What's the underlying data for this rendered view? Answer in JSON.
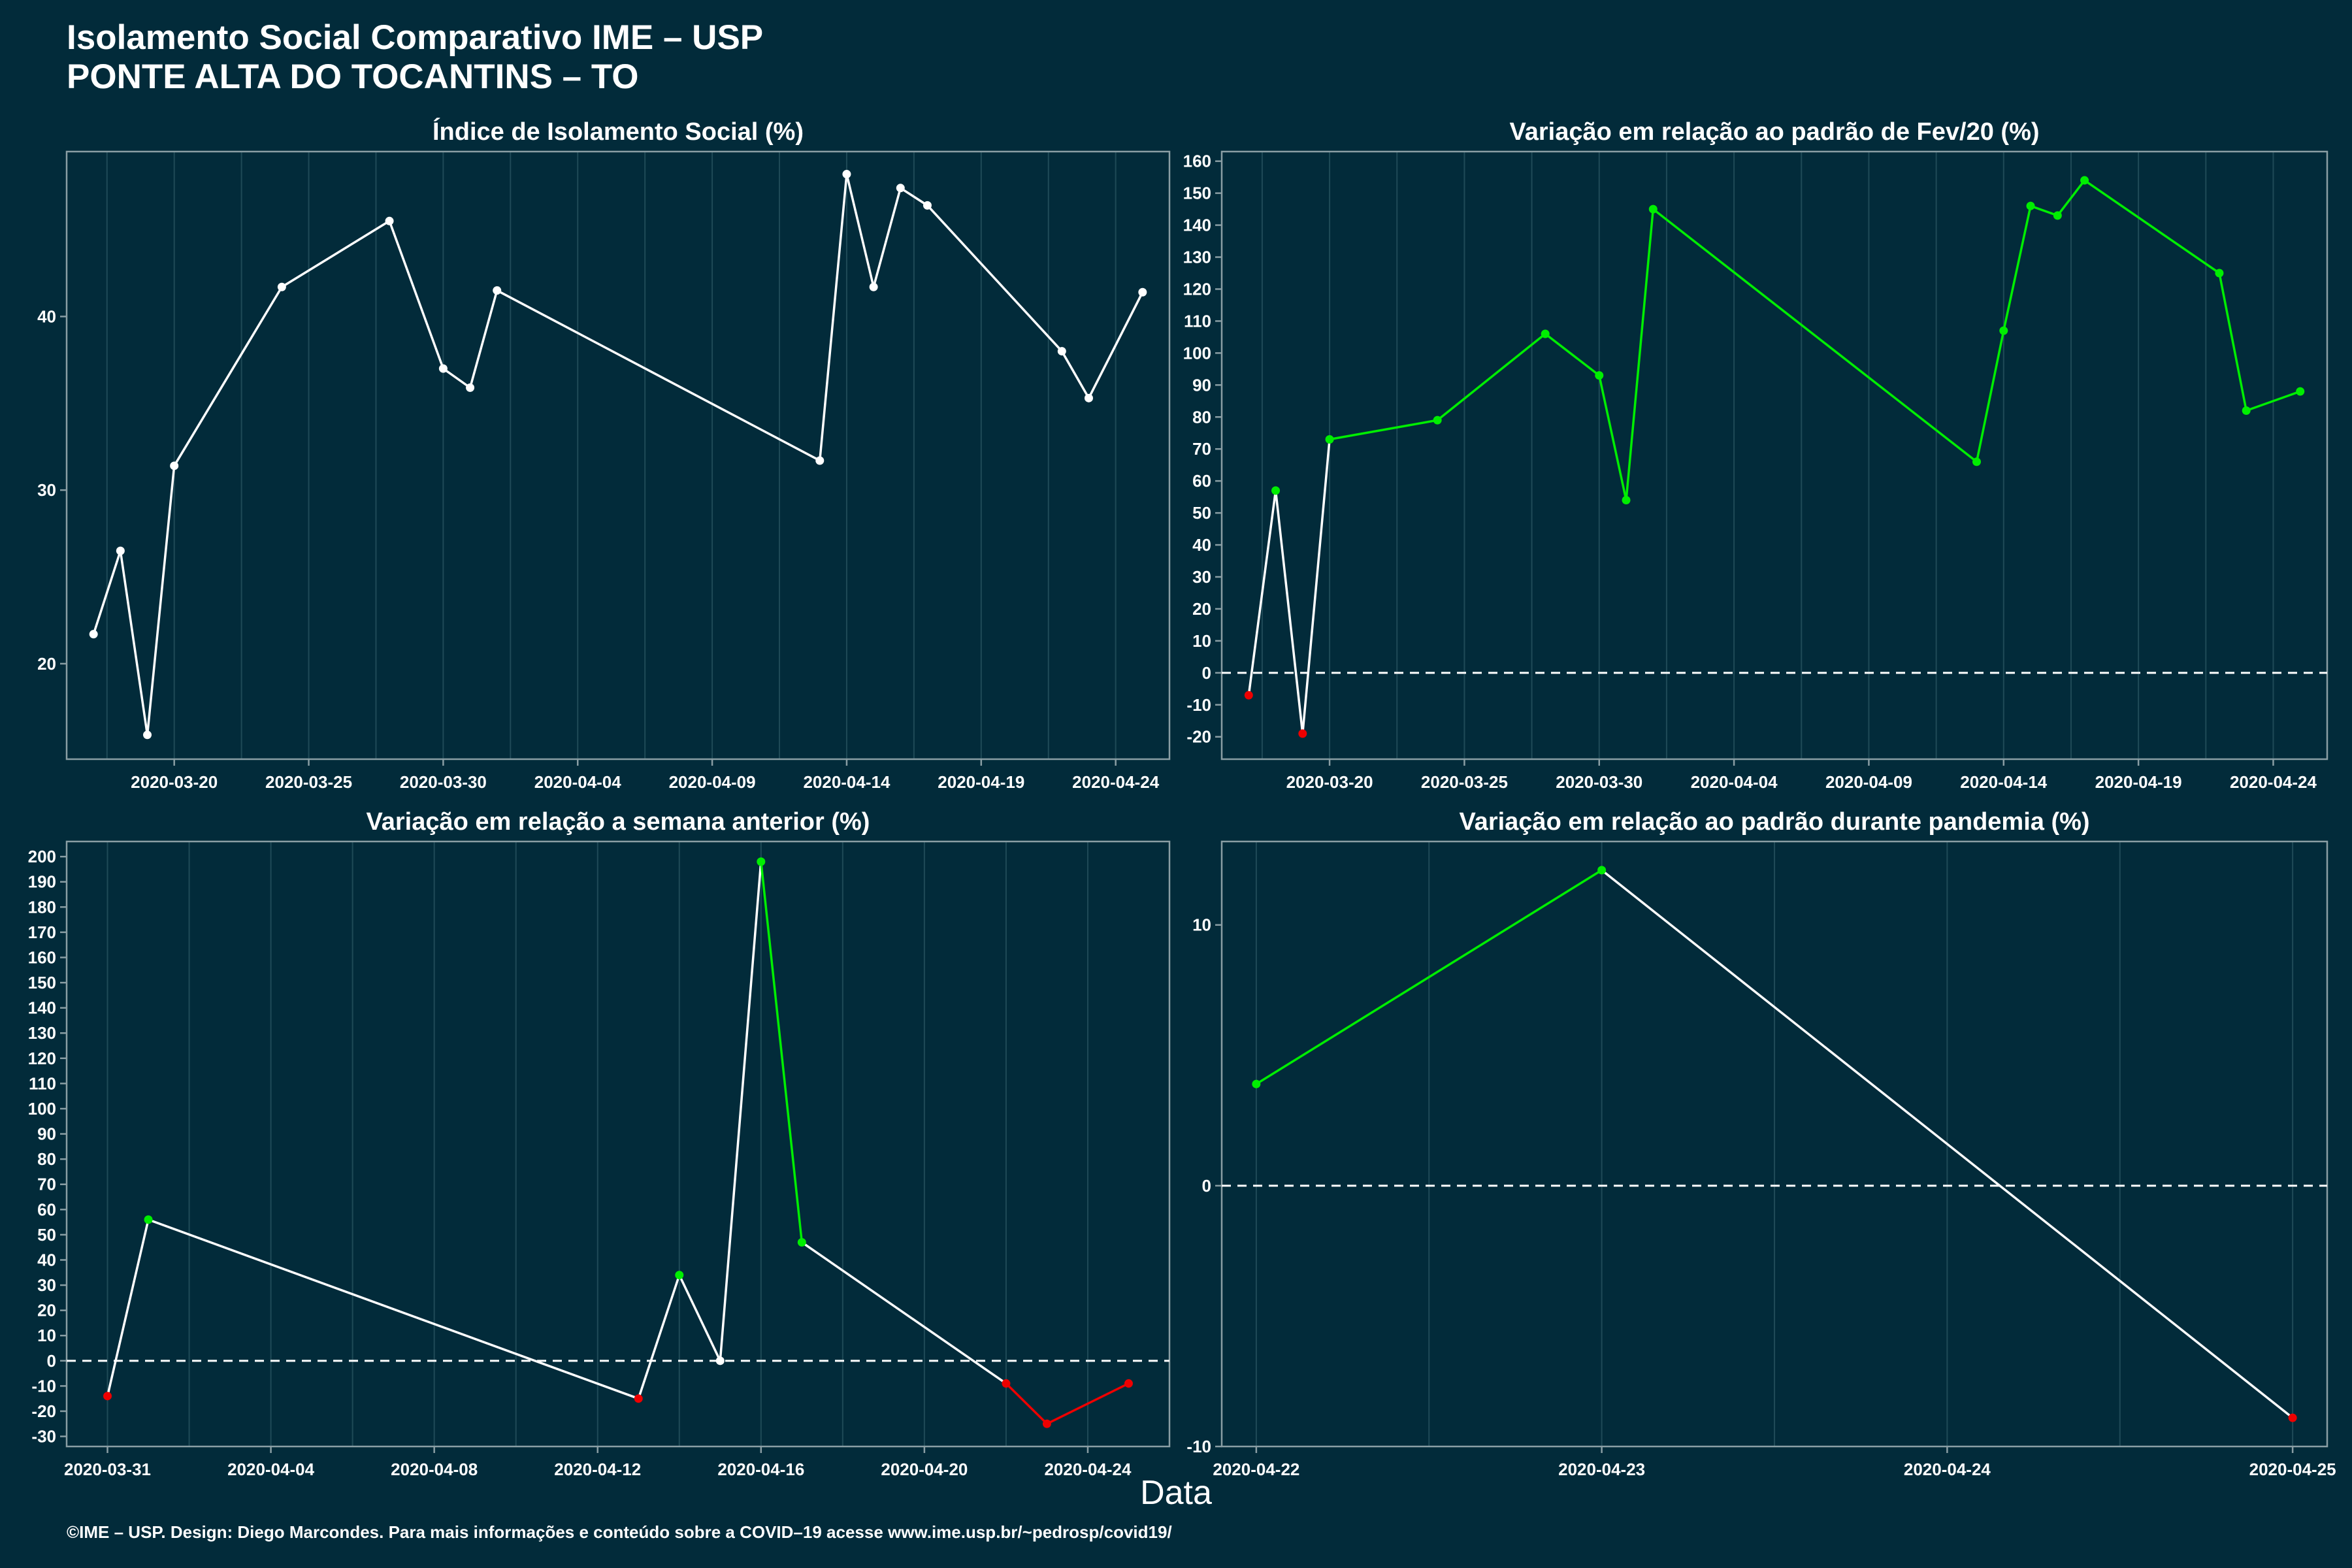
{
  "header": {
    "title": "Isolamento Social Comparativo IME – USP",
    "subtitle": "PONTE ALTA DO TOCANTINS – TO"
  },
  "x_axis_label": "Data",
  "footer": "©IME – USP. Design: Diego Marcondes. Para mais informações e conteúdo sobre a COVID–19 acesse www.ime.usp.br/~pedrosp/covid19/",
  "colors": {
    "background": "#022b3a",
    "neutral": "#ffffff",
    "positive": "#00ee00",
    "negative": "#ee0000"
  },
  "chart_data": [
    {
      "type": "line",
      "title": "Índice de Isolamento Social (%)",
      "colored": false,
      "zero_line": false,
      "xlim": [
        "2020-03-16",
        "2020-04-26"
      ],
      "ylim": [
        14.5,
        49.5
      ],
      "xticks": [
        "2020-03-20",
        "2020-03-25",
        "2020-03-30",
        "2020-04-04",
        "2020-04-09",
        "2020-04-14",
        "2020-04-19",
        "2020-04-24"
      ],
      "yticks": [
        20,
        30,
        40
      ],
      "x": [
        "2020-03-17",
        "2020-03-18",
        "2020-03-19",
        "2020-03-20",
        "2020-03-24",
        "2020-03-28",
        "2020-03-30",
        "2020-03-31",
        "2020-04-01",
        "2020-04-13",
        "2020-04-14",
        "2020-04-15",
        "2020-04-16",
        "2020-04-17",
        "2020-04-22",
        "2020-04-23",
        "2020-04-25"
      ],
      "values": [
        21.7,
        26.5,
        15.9,
        31.4,
        41.7,
        45.5,
        37.0,
        35.9,
        41.5,
        31.7,
        48.2,
        41.7,
        47.4,
        46.4,
        38.0,
        35.3,
        41.4
      ]
    },
    {
      "type": "line",
      "title": "Variação em relação ao padrão de Fev/20 (%)",
      "colored": true,
      "zero_line": true,
      "xlim": [
        "2020-03-16",
        "2020-04-26"
      ],
      "ylim": [
        -27,
        163
      ],
      "xticks": [
        "2020-03-20",
        "2020-03-25",
        "2020-03-30",
        "2020-04-04",
        "2020-04-09",
        "2020-04-14",
        "2020-04-19",
        "2020-04-24"
      ],
      "yticks": [
        -20,
        -10,
        0,
        10,
        20,
        30,
        40,
        50,
        60,
        70,
        80,
        90,
        100,
        110,
        120,
        130,
        140,
        150,
        160
      ],
      "x": [
        "2020-03-17",
        "2020-03-18",
        "2020-03-19",
        "2020-03-20",
        "2020-03-24",
        "2020-03-28",
        "2020-03-30",
        "2020-03-31",
        "2020-04-01",
        "2020-04-13",
        "2020-04-14",
        "2020-04-15",
        "2020-04-16",
        "2020-04-17",
        "2020-04-22",
        "2020-04-23",
        "2020-04-25"
      ],
      "values": [
        -7,
        57,
        -19,
        73,
        79,
        106,
        93,
        54,
        145,
        66,
        107,
        146,
        143,
        154,
        125,
        82,
        88
      ]
    },
    {
      "type": "line",
      "title": "Variação em relação a semana anterior (%)",
      "colored": true,
      "zero_line": true,
      "xlim": [
        "2020-03-30",
        "2020-04-26"
      ],
      "ylim": [
        -34,
        206
      ],
      "xticks": [
        "2020-03-31",
        "2020-04-04",
        "2020-04-08",
        "2020-04-12",
        "2020-04-16",
        "2020-04-20",
        "2020-04-24"
      ],
      "yticks": [
        -30,
        -20,
        -10,
        0,
        10,
        20,
        30,
        40,
        50,
        60,
        70,
        80,
        90,
        100,
        110,
        120,
        130,
        140,
        150,
        160,
        170,
        180,
        190,
        200
      ],
      "x": [
        "2020-03-31",
        "2020-04-01",
        "2020-04-13",
        "2020-04-14",
        "2020-04-15",
        "2020-04-16",
        "2020-04-17",
        "2020-04-22",
        "2020-04-23",
        "2020-04-25"
      ],
      "values": [
        -14,
        56,
        -15,
        34,
        0,
        198,
        47,
        -9,
        -25,
        -9
      ]
    },
    {
      "type": "line",
      "title": "Variação em relação ao padrão durante pandemia (%)",
      "colored": true,
      "zero_line": true,
      "xlim": [
        "2020-04-21.9",
        "2020-04-25.1"
      ],
      "ylim": [
        -10,
        13.2
      ],
      "xticks": [
        "2020-04-22",
        "2020-04-23",
        "2020-04-24",
        "2020-04-25"
      ],
      "yticks": [
        -10,
        0,
        10
      ],
      "x": [
        "2020-04-22",
        "2020-04-23",
        "2020-04-25"
      ],
      "values": [
        3.9,
        12.1,
        -8.9
      ]
    }
  ]
}
